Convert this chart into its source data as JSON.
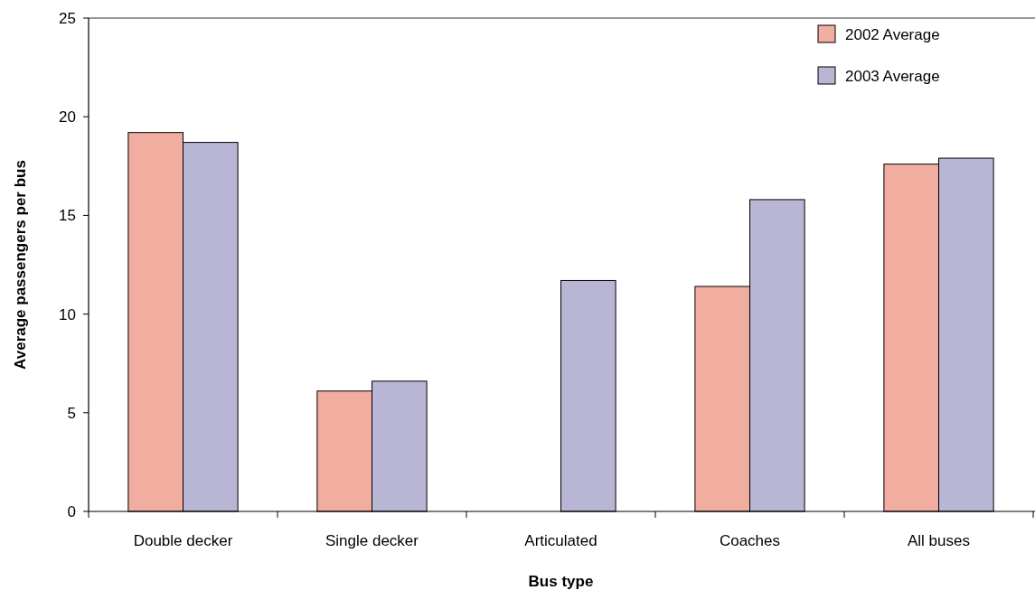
{
  "chart_data": {
    "type": "bar",
    "xlabel": "Bus type",
    "ylabel": "Average passengers per bus",
    "categories": [
      "Double decker",
      "Single decker",
      "Articulated",
      "Coaches",
      "All buses"
    ],
    "series": [
      {
        "name": "2002 Average",
        "color": "#f0ada0",
        "values": [
          19.2,
          6.1,
          null,
          11.4,
          17.6
        ]
      },
      {
        "name": "2003 Average",
        "color": "#b8b5d5",
        "values": [
          18.7,
          6.6,
          11.7,
          15.8,
          17.9
        ]
      }
    ],
    "ylim": [
      0,
      25
    ],
    "yticks": [
      0,
      5,
      10,
      15,
      20,
      25
    ],
    "legend": "top right"
  }
}
